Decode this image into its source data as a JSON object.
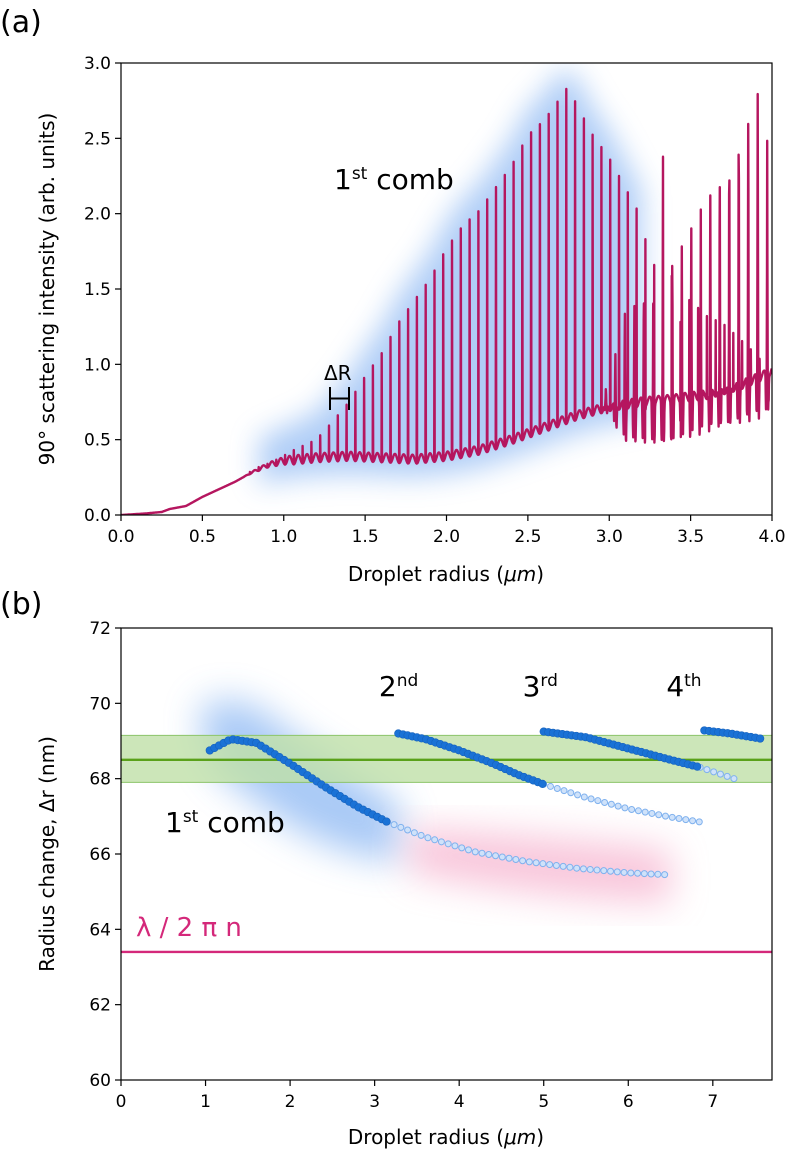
{
  "chart_data": [
    {
      "panel_label": "(a)",
      "type": "line",
      "xlabel_main": "Droplet radius (",
      "xlabel_unit": "μm",
      "xlabel_close": ")",
      "ylabel": "90° scattering intensity (arb. units)",
      "xlim": [
        0.0,
        4.0
      ],
      "ylim": [
        0.0,
        3.0
      ],
      "xticks": [
        "0.0",
        "0.5",
        "1.0",
        "1.5",
        "2.0",
        "2.5",
        "3.0",
        "3.5",
        "4.0"
      ],
      "yticks": [
        "0.0",
        "0.5",
        "1.0",
        "1.5",
        "2.0",
        "2.5",
        "3.0"
      ],
      "annotation_comb_base": "1",
      "annotation_comb_sup": "st",
      "annotation_comb_text": " comb",
      "annotation_delta": "ΔR",
      "line_color": "#b5165f",
      "highlight_color": "#6fa6f0",
      "baseline": [
        [
          0.0,
          0.0
        ],
        [
          0.15,
          0.01
        ],
        [
          0.25,
          0.02
        ],
        [
          0.3,
          0.04
        ],
        [
          0.4,
          0.06
        ],
        [
          0.5,
          0.12
        ],
        [
          0.6,
          0.17
        ],
        [
          0.7,
          0.22
        ],
        [
          0.8,
          0.28
        ],
        [
          0.9,
          0.33
        ],
        [
          1.0,
          0.36
        ],
        [
          1.2,
          0.38
        ],
        [
          1.4,
          0.39
        ],
        [
          1.6,
          0.38
        ],
        [
          1.8,
          0.37
        ],
        [
          2.0,
          0.39
        ],
        [
          2.2,
          0.43
        ],
        [
          2.4,
          0.5
        ],
        [
          2.6,
          0.58
        ],
        [
          2.8,
          0.66
        ],
        [
          3.0,
          0.72
        ],
        [
          3.2,
          0.75
        ],
        [
          3.4,
          0.77
        ],
        [
          3.6,
          0.8
        ],
        [
          3.8,
          0.86
        ],
        [
          4.0,
          0.95
        ]
      ],
      "peak_spacing": 0.054,
      "peak_envelope": [
        [
          0.9,
          0.38
        ],
        [
          1.0,
          0.43
        ],
        [
          1.1,
          0.48
        ],
        [
          1.2,
          0.53
        ],
        [
          1.3,
          0.65
        ],
        [
          1.4,
          0.78
        ],
        [
          1.5,
          0.95
        ],
        [
          1.6,
          1.1
        ],
        [
          1.7,
          1.3
        ],
        [
          1.8,
          1.45
        ],
        [
          1.9,
          1.6
        ],
        [
          2.0,
          1.8
        ],
        [
          2.1,
          1.95
        ],
        [
          2.2,
          2.05
        ],
        [
          2.3,
          2.2
        ],
        [
          2.4,
          2.35
        ],
        [
          2.5,
          2.55
        ],
        [
          2.6,
          2.65
        ],
        [
          2.7,
          2.8
        ],
        [
          2.75,
          2.88
        ],
        [
          2.8,
          2.75
        ],
        [
          2.9,
          2.55
        ],
        [
          3.0,
          2.4
        ],
        [
          3.1,
          2.2
        ],
        [
          3.2,
          2.0
        ],
        [
          3.3,
          1.8
        ],
        [
          3.4,
          1.6
        ],
        [
          3.5,
          1.45
        ],
        [
          3.6,
          1.35
        ],
        [
          3.7,
          1.3
        ],
        [
          3.8,
          1.2
        ],
        [
          3.9,
          1.1
        ],
        [
          4.0,
          1.0
        ]
      ],
      "second_comb_start": 2.95,
      "second_comb_envelope": [
        [
          2.95,
          1.15
        ],
        [
          3.1,
          1.35
        ],
        [
          3.3,
          1.6
        ],
        [
          3.5,
          1.9
        ],
        [
          3.7,
          2.3
        ],
        [
          3.8,
          2.6
        ],
        [
          3.9,
          2.8
        ],
        [
          3.95,
          3.0
        ],
        [
          4.0,
          1.8
        ]
      ]
    },
    {
      "panel_label": "(b)",
      "type": "scatter",
      "xlabel_main": "Droplet radius (",
      "xlabel_unit": "μm",
      "xlabel_close": ")",
      "ylabel": "Radius change, Δr (nm)",
      "xlim": [
        0,
        7.7
      ],
      "ylim": [
        60,
        72
      ],
      "xticks": [
        "0",
        "1",
        "2",
        "3",
        "4",
        "5",
        "6",
        "7"
      ],
      "yticks": [
        "60",
        "62",
        "64",
        "66",
        "68",
        "70",
        "72"
      ],
      "hline_green": {
        "y": 68.5,
        "band": [
          67.9,
          69.15
        ],
        "color": "#5aa11a",
        "band_color": "#bfe0a8"
      },
      "hline_magenta": {
        "y": 63.4,
        "color": "#d4287a",
        "label": "λ / 2 π n"
      },
      "comb_labels": [
        {
          "base": "2",
          "sup": "nd",
          "x": 3.05,
          "y": 70.2
        },
        {
          "base": "3",
          "sup": "rd",
          "x": 4.75,
          "y": 70.2
        },
        {
          "base": "4",
          "sup": "th",
          "x": 6.45,
          "y": 70.2
        }
      ],
      "first_comb_label": {
        "base": "1",
        "sup": "st",
        "text": " comb"
      },
      "series": [
        {
          "solid": [
            1.05,
            3.15
          ],
          "dashed": [
            3.15,
            6.45
          ],
          "points": [
            [
              1.05,
              68.75
            ],
            [
              1.3,
              69.05
            ],
            [
              1.6,
              68.95
            ],
            [
              2.0,
              68.4
            ],
            [
              2.4,
              67.8
            ],
            [
              2.8,
              67.25
            ],
            [
              3.15,
              66.85
            ],
            [
              3.6,
              66.45
            ],
            [
              4.2,
              66.05
            ],
            [
              4.8,
              65.8
            ],
            [
              5.4,
              65.62
            ],
            [
              6.0,
              65.5
            ],
            [
              6.45,
              65.45
            ]
          ]
        },
        {
          "solid": [
            3.28,
            5.0
          ],
          "dashed": [
            5.0,
            6.85
          ],
          "points": [
            [
              3.28,
              69.2
            ],
            [
              3.6,
              69.05
            ],
            [
              4.0,
              68.75
            ],
            [
              4.4,
              68.4
            ],
            [
              4.7,
              68.1
            ],
            [
              5.0,
              67.85
            ],
            [
              5.5,
              67.5
            ],
            [
              6.0,
              67.2
            ],
            [
              6.5,
              66.98
            ],
            [
              6.85,
              66.85
            ]
          ]
        },
        {
          "solid": [
            5.0,
            6.85
          ],
          "dashed": [
            6.85,
            7.25
          ],
          "points": [
            [
              5.0,
              69.25
            ],
            [
              5.5,
              69.1
            ],
            [
              6.0,
              68.8
            ],
            [
              6.5,
              68.5
            ],
            [
              6.85,
              68.3
            ],
            [
              7.05,
              68.15
            ],
            [
              7.25,
              68.0
            ]
          ]
        },
        {
          "solid": [
            6.9,
            7.6
          ],
          "dashed": null,
          "points": [
            [
              6.9,
              69.28
            ],
            [
              7.2,
              69.2
            ],
            [
              7.6,
              69.05
            ]
          ]
        }
      ]
    }
  ]
}
